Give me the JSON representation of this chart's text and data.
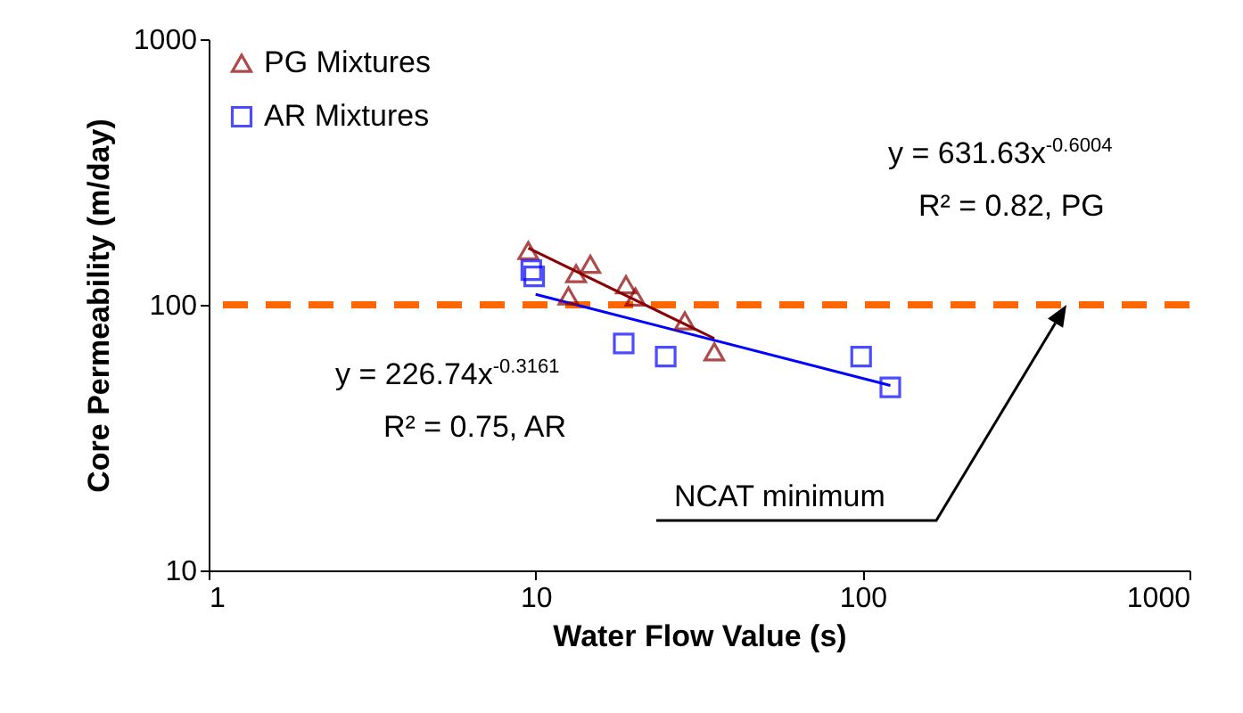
{
  "chart_data": {
    "type": "scatter",
    "xlabel": "Water Flow Value (s)",
    "ylabel": "Core Permeability (m/day)",
    "log": "xy",
    "xlim": [
      1,
      1000
    ],
    "ylim": [
      10,
      1000
    ],
    "xticks": [
      1,
      10,
      100,
      1000
    ],
    "yticks": [
      10,
      100,
      1000
    ],
    "grid": false,
    "legend": "top left",
    "series": [
      {
        "name": "PG Mixtures",
        "marker": "triangle",
        "color": "#8b0000",
        "x": [
          9.5,
          13.3,
          14.7,
          12.6,
          18.9,
          20.2,
          28.6,
          35.2
        ],
        "values": [
          160,
          131,
          142,
          108,
          119,
          107,
          87,
          66.5
        ]
      },
      {
        "name": "AR Mixtures",
        "marker": "square",
        "color": "#0000ff",
        "x": [
          9.7,
          9.9,
          18.6,
          25,
          99,
          121.6
        ],
        "values": [
          135,
          128,
          71.5,
          63.8,
          63.8,
          48.9
        ]
      },
      {
        "type": "line",
        "color": "#8b0000",
        "x": [
          9.5,
          35.2
        ],
        "values": [
          163.5,
          74.7
        ]
      },
      {
        "type": "line",
        "color": "#0000ff",
        "x": [
          10,
          121.6
        ],
        "values": [
          109.5,
          49.7
        ]
      }
    ],
    "ref_lines": [
      {
        "axis": "y",
        "value": 100,
        "color": "#ff6600",
        "line_style": "dashed"
      }
    ],
    "annotations": [
      "y = 631.63x$^{-0.6004}$",
      "R² = 0.82, PG",
      "y = 226.74x$^{-0.3161}$",
      "R² = 0.75, AR",
      "NCAT minimum"
    ]
  }
}
